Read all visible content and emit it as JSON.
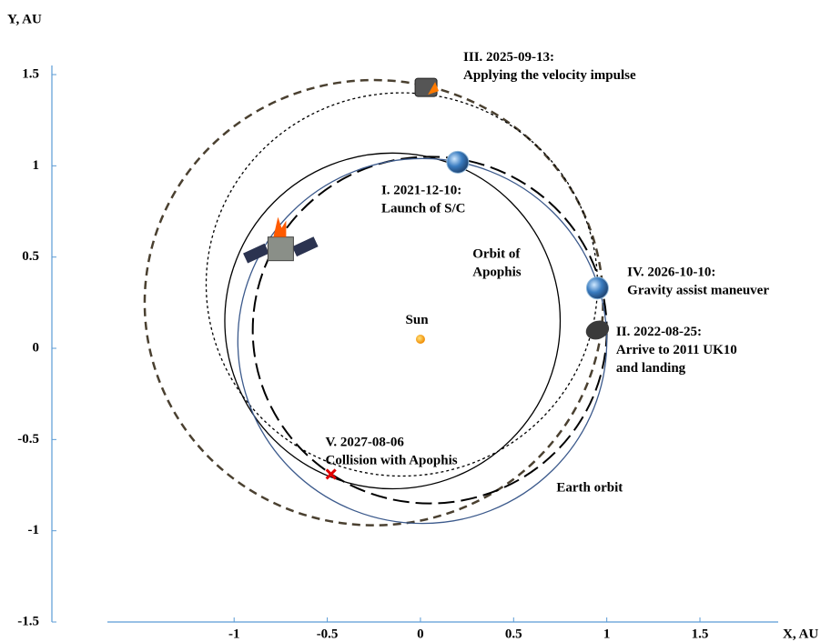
{
  "chart_data": {
    "type": "orbit",
    "x_label": "X, AU",
    "y_label": "Y, AU",
    "xlim": [
      -1.68,
      1.92
    ],
    "ylim": [
      -1.5,
      1.55
    ],
    "xticks": [
      -1,
      -0.5,
      0,
      0.5,
      1,
      1.5
    ],
    "yticks": [
      -1.5,
      -1,
      -0.5,
      0,
      0.5,
      1,
      1.5
    ],
    "axis_color": "#5b9bd5",
    "orbits": [
      {
        "cx": -0.25,
        "cy": 0.25,
        "rx": 1.23,
        "ry": 1.22,
        "color": "#4a4030",
        "dash": "dashed"
      },
      {
        "cx": -0.1,
        "cy": 0.35,
        "rx": 1.05,
        "ry": 1.05,
        "color": "#000000",
        "dash": "dotted"
      },
      {
        "cx": -0.15,
        "cy": 0.15,
        "rx": 0.9,
        "ry": 0.92,
        "color": "#000000",
        "dash": "solid",
        "label": [
          "Orbit of",
          "Apophis"
        ],
        "lx": 0.28,
        "ly": 0.51
      },
      {
        "cx": 0.05,
        "cy": 0.1,
        "rx": 0.95,
        "ry": 0.95,
        "color": "#000000",
        "dash": "long-dashed"
      },
      {
        "cx": 0.01,
        "cy": 0.04,
        "rx": 0.99,
        "ry": 1.0,
        "color": "#3c5a8c",
        "dash": "solid",
        "label": [
          "Earth orbit"
        ],
        "lx": 0.73,
        "ly": -0.77
      }
    ],
    "events": [
      {
        "kind": "sun",
        "x": 0.0,
        "y": 0.05,
        "label": [
          "Sun"
        ],
        "lx": -0.08,
        "ly": 0.15
      },
      {
        "kind": "earth",
        "x": 0.2,
        "y": 1.02,
        "label": [
          "I. 2021-12-10:",
          "Launch of S/C"
        ],
        "lx": -0.21,
        "ly": 0.86
      },
      {
        "kind": "asteroid",
        "x": 0.95,
        "y": 0.1,
        "label": [
          "II. 2022-08-25:",
          "Arrive to 2011 UK10",
          "and landing"
        ],
        "lx": 1.05,
        "ly": 0.085
      },
      {
        "kind": "spacecraft",
        "x": 0.03,
        "y": 1.43,
        "label": [
          "III. 2025-09-13:",
          "Applying the velocity impulse"
        ],
        "lx": 0.23,
        "ly": 1.59
      },
      {
        "kind": "earth",
        "x": 0.95,
        "y": 0.33,
        "label": [
          "IV. 2026-10-10:",
          "Gravity assist maneuver"
        ],
        "lx": 1.11,
        "ly": 0.41
      },
      {
        "kind": "cross",
        "x": -0.48,
        "y": -0.69,
        "label": [
          "V. 2027-08-06",
          "Collision with Apophis"
        ],
        "lx": -0.51,
        "ly": -0.52
      },
      {
        "kind": "launch",
        "x": -0.75,
        "y": 0.55
      }
    ]
  }
}
